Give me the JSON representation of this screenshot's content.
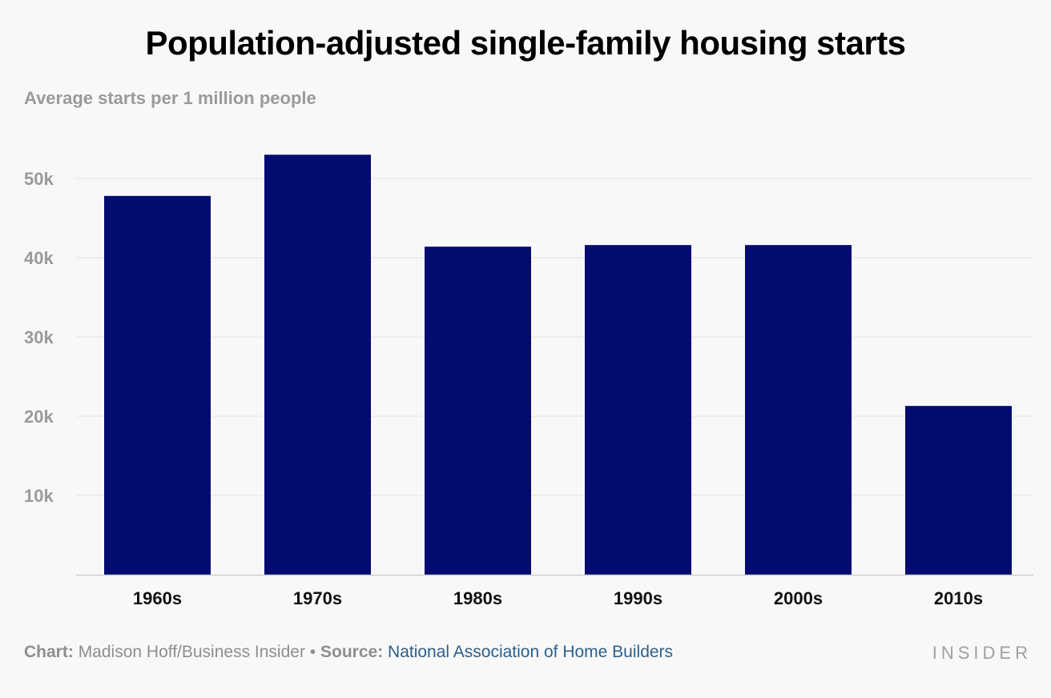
{
  "colors": {
    "bar": "#020b70",
    "grid": "#e4e4e4",
    "axis": "#cfcfcf",
    "background": "#f8f8f8"
  },
  "chart_data": {
    "type": "bar",
    "title": "Population-adjusted single-family housing starts",
    "subtitle": "Average starts per 1 million people",
    "categories": [
      "1960s",
      "1970s",
      "1980s",
      "1990s",
      "2000s",
      "2010s"
    ],
    "values": [
      47800,
      53000,
      41400,
      41600,
      41600,
      21300
    ],
    "ylim": [
      0,
      55000
    ],
    "yticks": [
      10000,
      20000,
      30000,
      40000,
      50000
    ],
    "ytick_labels": [
      "10k",
      "20k",
      "30k",
      "40k",
      "50k"
    ],
    "grid": true,
    "legend": false
  },
  "footer": {
    "chart_label": "Chart:",
    "chart_credit": "Madison Hoff/Business Insider",
    "separator": "•",
    "source_label": "Source:",
    "source_name": "National Association of Home Builders"
  },
  "brand": {
    "logo_text": "INSIDER"
  }
}
